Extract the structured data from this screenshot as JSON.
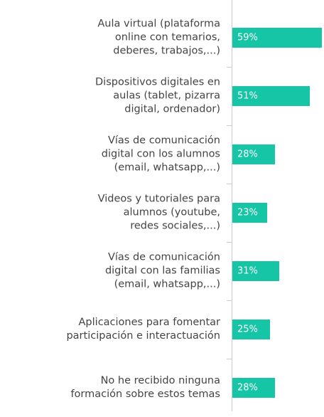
{
  "chart_data": {
    "type": "bar",
    "orientation": "horizontal",
    "categories": [
      "Aula virtual (plataforma\nonline con temarios,\ndeberes, trabajos,...)",
      "Dispositivos digitales en\naulas (tablet, pizarra\ndigital, ordenador)",
      "Vías de comunicación\ndigital con los alumnos\n(email, whatsapp,...)",
      "Videos y tutoriales para\nalumnos (youtube,\nredes sociales,...)",
      "Vías de comunicación\ndigital con las familias\n(email, whatsapp,...)",
      "Aplicaciones para fomentar\nparticipación e interactuación",
      "No he recibido ninguna\nformación sobre estos temas"
    ],
    "values": [
      59,
      51,
      28,
      23,
      31,
      25,
      28
    ],
    "value_labels": [
      "59%",
      "51%",
      "28%",
      "23%",
      "31%",
      "25%",
      "28%"
    ],
    "color": "#16c4a6",
    "xlim": [
      0,
      60
    ]
  }
}
